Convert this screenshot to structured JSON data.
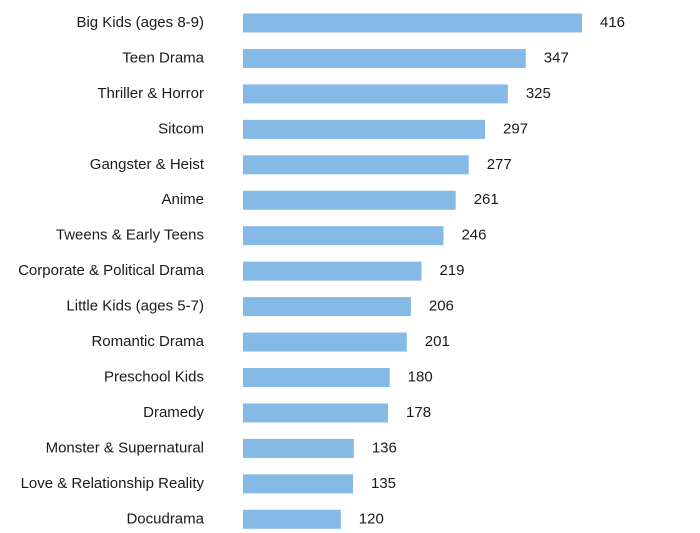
{
  "chart_data": {
    "type": "bar",
    "orientation": "horizontal",
    "title": "",
    "xlabel": "",
    "ylabel": "",
    "grid": false,
    "legend": "none",
    "bar_color": "#85bae6",
    "text_color": "#1a1a1a",
    "categories": [
      "Big Kids (ages 8-9)",
      "Teen Drama",
      "Thriller & Horror",
      "Sitcom",
      "Gangster & Heist",
      "Anime",
      "Tweens & Early Teens",
      "Corporate & Political Drama",
      "Little Kids (ages 5-7)",
      "Romantic Drama",
      "Preschool Kids",
      "Dramedy",
      "Monster & Supernatural",
      "Love & Relationship Reality",
      "Docudrama"
    ],
    "values": [
      416,
      347,
      325,
      297,
      277,
      261,
      246,
      219,
      206,
      201,
      180,
      178,
      136,
      135,
      120
    ],
    "value_labels": [
      "416",
      "347",
      "325",
      "297",
      "277",
      "261",
      "246",
      "219",
      "206",
      "201",
      "180",
      "178",
      "136",
      "135",
      "120"
    ],
    "xlim": [
      0,
      416
    ]
  }
}
